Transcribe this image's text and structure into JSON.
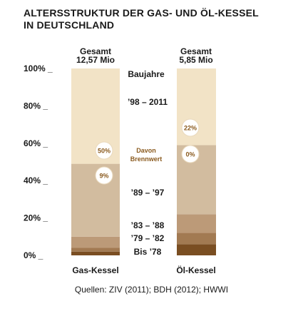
{
  "title_lines": [
    "ALTERSSTRUKTUR DER GAS- UND ÖL-KESSEL",
    "IN DEUTSCHLAND"
  ],
  "source": "Quellen: ZIV (2011); BDH (2012); HWWI",
  "colors": {
    "bis_78": "#7a4e22",
    "79_82": "#a27a52",
    "83_88": "#bc9a78",
    "89_97": "#d2bc9f",
    "98_2011": "#f2e3c6",
    "tick_text": "#1a1a1a",
    "bubble_text": "#8a5a1e"
  },
  "chart_data": {
    "type": "bar",
    "stacked": true,
    "ylim": [
      0,
      100
    ],
    "yticks": [
      0,
      20,
      40,
      60,
      80,
      100
    ],
    "ytick_labels": [
      "0%",
      "20%",
      "40%",
      "60%",
      "80%",
      "100%"
    ],
    "categories": [
      "Gas-Kessel",
      "Öl-Kessel"
    ],
    "totals": [
      "Gesamt\n12,57 Mio",
      "Gesamt\n5,85 Mio"
    ],
    "legend_title": "Baujahre",
    "series": [
      {
        "name": "Bis ’78",
        "key": "bis_78",
        "values": [
          2,
          6
        ]
      },
      {
        "name": "’79 – ’82",
        "key": "79_82",
        "values": [
          2,
          6
        ]
      },
      {
        "name": "’83 – ’88",
        "key": "83_88",
        "values": [
          6,
          10
        ]
      },
      {
        "name": "’89 – ’97",
        "key": "89_97",
        "values": [
          39,
          37
        ]
      },
      {
        "name": "’98 – 2011",
        "key": "98_2011",
        "values": [
          51,
          41
        ]
      }
    ],
    "annotation_label": "Davon\nBrennwert",
    "annotations": [
      {
        "category": "Gas-Kessel",
        "series": "’98 – 2011",
        "value": "50%"
      },
      {
        "category": "Gas-Kessel",
        "series": "’89 – ’97",
        "value": "9%"
      },
      {
        "category": "Öl-Kessel",
        "series": "’98 – 2011",
        "value": "22%"
      },
      {
        "category": "Öl-Kessel",
        "series": "’89 – ’97",
        "value": "0%"
      }
    ]
  }
}
